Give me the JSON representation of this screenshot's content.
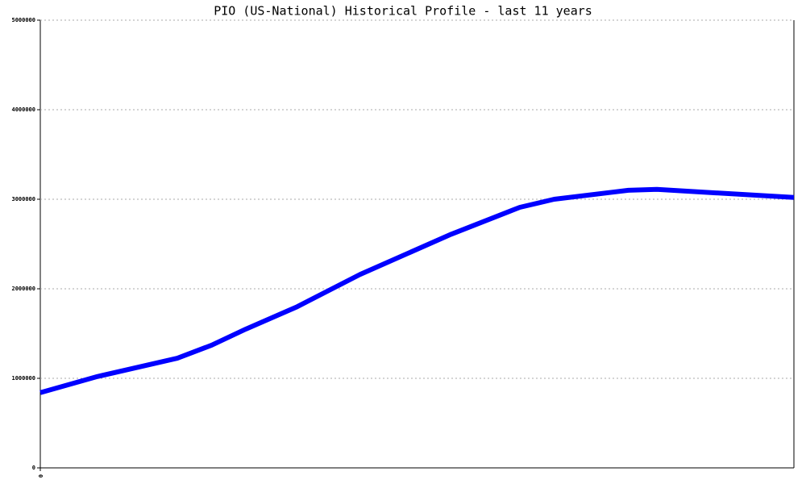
{
  "chart_data": {
    "type": "line",
    "title": "PIO (US-National) Historical Profile - last 11 years",
    "x": [
      0,
      10,
      24,
      30,
      36,
      45,
      56,
      72,
      84,
      90,
      103,
      108,
      132
    ],
    "series": [
      {
        "color": "#0000ff",
        "values": [
          840000,
          1020000,
          1225000,
          1370000,
          1550000,
          1800000,
          2160000,
          2610000,
          2910000,
          3000000,
          3100000,
          3110000,
          3020000
        ]
      }
    ],
    "xlim": [
      0,
      132
    ],
    "xticks": [
      0
    ],
    "ylim": [
      0,
      5000000
    ],
    "yticks": [
      0,
      1000000,
      2000000,
      3000000,
      4000000,
      5000000
    ],
    "grid": true
  }
}
